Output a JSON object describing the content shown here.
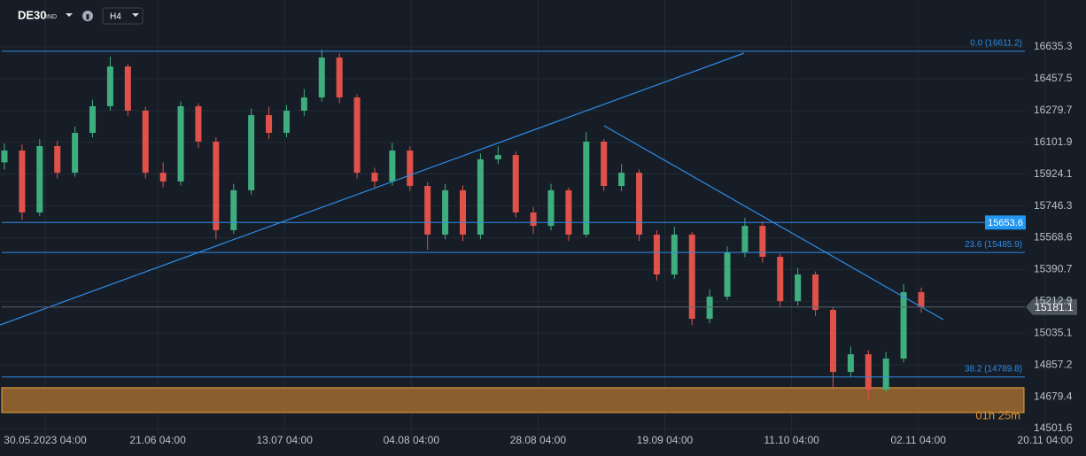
{
  "toolbar": {
    "symbol": "DE30",
    "badge": "IND",
    "timeframe": "H4"
  },
  "chart_data": {
    "type": "candlestick",
    "x_labels": [
      "30.05.2023  04:00",
      "21.06  04:00",
      "13.07  04:00",
      "04.08  04:00",
      "28.08  04:00",
      "19.09  04:00",
      "11.10  04:00",
      "02.11  04:00",
      "20.11  04:00"
    ],
    "up_color": "#3fae7e",
    "down_color": "#e0514a",
    "open": [
      15990,
      16056,
      15710,
      16081,
      15932,
      16155,
      16304,
      16526,
      16279,
      15932,
      15883,
      16304,
      16106,
      15611,
      15834,
      16254,
      16155,
      16279,
      16353,
      16576,
      16353,
      15932,
      15883,
      16056,
      15858,
      15586,
      15834,
      15586,
      16007,
      16031,
      15710,
      15635,
      15834,
      15586,
      16106,
      15858,
      15932,
      15586,
      15363,
      15586,
      15115,
      15239,
      15487,
      15635,
      15462,
      15214,
      15363,
      15165,
      14818,
      14917,
      14719,
      14893,
      15264
    ],
    "high": [
      16096,
      16090,
      16120,
      16110,
      16190,
      16340,
      16580,
      16540,
      16300,
      15990,
      16330,
      16320,
      16130,
      15870,
      16290,
      16300,
      16310,
      16400,
      16620,
      16600,
      16370,
      15960,
      16100,
      16080,
      15880,
      15870,
      15860,
      16040,
      16080,
      16050,
      15740,
      15870,
      15850,
      16160,
      16120,
      15980,
      15950,
      15610,
      15630,
      15600,
      15280,
      15520,
      15680,
      15660,
      15480,
      15400,
      15380,
      15180,
      14960,
      14940,
      14930,
      15310,
      15290
    ],
    "low": [
      15950,
      15670,
      15690,
      15900,
      15910,
      16130,
      16280,
      16250,
      15900,
      15850,
      15860,
      16070,
      15560,
      15590,
      15810,
      16120,
      16130,
      16250,
      16330,
      16320,
      15900,
      15850,
      15860,
      15830,
      15500,
      15560,
      15550,
      15560,
      15980,
      15680,
      15590,
      15610,
      15550,
      15570,
      15830,
      15830,
      15550,
      15330,
      15340,
      15080,
      15090,
      15220,
      15460,
      15430,
      15180,
      15190,
      15130,
      14720,
      14790,
      14660,
      14700,
      14870,
      15150
    ],
    "close": [
      16056,
      15710,
      16081,
      15932,
      16155,
      16304,
      16526,
      16279,
      15932,
      15883,
      16304,
      16106,
      15611,
      15834,
      16254,
      16155,
      16279,
      16353,
      16576,
      16353,
      15932,
      15883,
      16056,
      15858,
      15586,
      15834,
      15586,
      16007,
      16031,
      15710,
      15635,
      15834,
      15586,
      16106,
      15858,
      15932,
      15586,
      15363,
      15586,
      15115,
      15239,
      15487,
      15635,
      15462,
      15214,
      15363,
      15165,
      14818,
      14917,
      14719,
      14893,
      15264,
      15181.1
    ],
    "ylim": [
      14462,
      16873
    ],
    "yticks": [
      16635.3,
      16457.5,
      16279.7,
      16101.9,
      15924.1,
      15746.3,
      15568.6,
      15390.7,
      15212.9,
      15035.1,
      14857.2,
      14679.4,
      14501.6
    ],
    "grid": true,
    "fib_levels": [
      {
        "value": 16611.2,
        "label": "0.0 (16611.2)"
      },
      {
        "value": 15485.9,
        "label": "23.6 (15485.9)"
      },
      {
        "value": 14789.8,
        "label": "38.2 (14789.8)"
      }
    ],
    "level_line": 15653.6,
    "current_price": 15181.1,
    "zone": [
      14591,
      14730
    ],
    "timer": "01h 25m"
  }
}
